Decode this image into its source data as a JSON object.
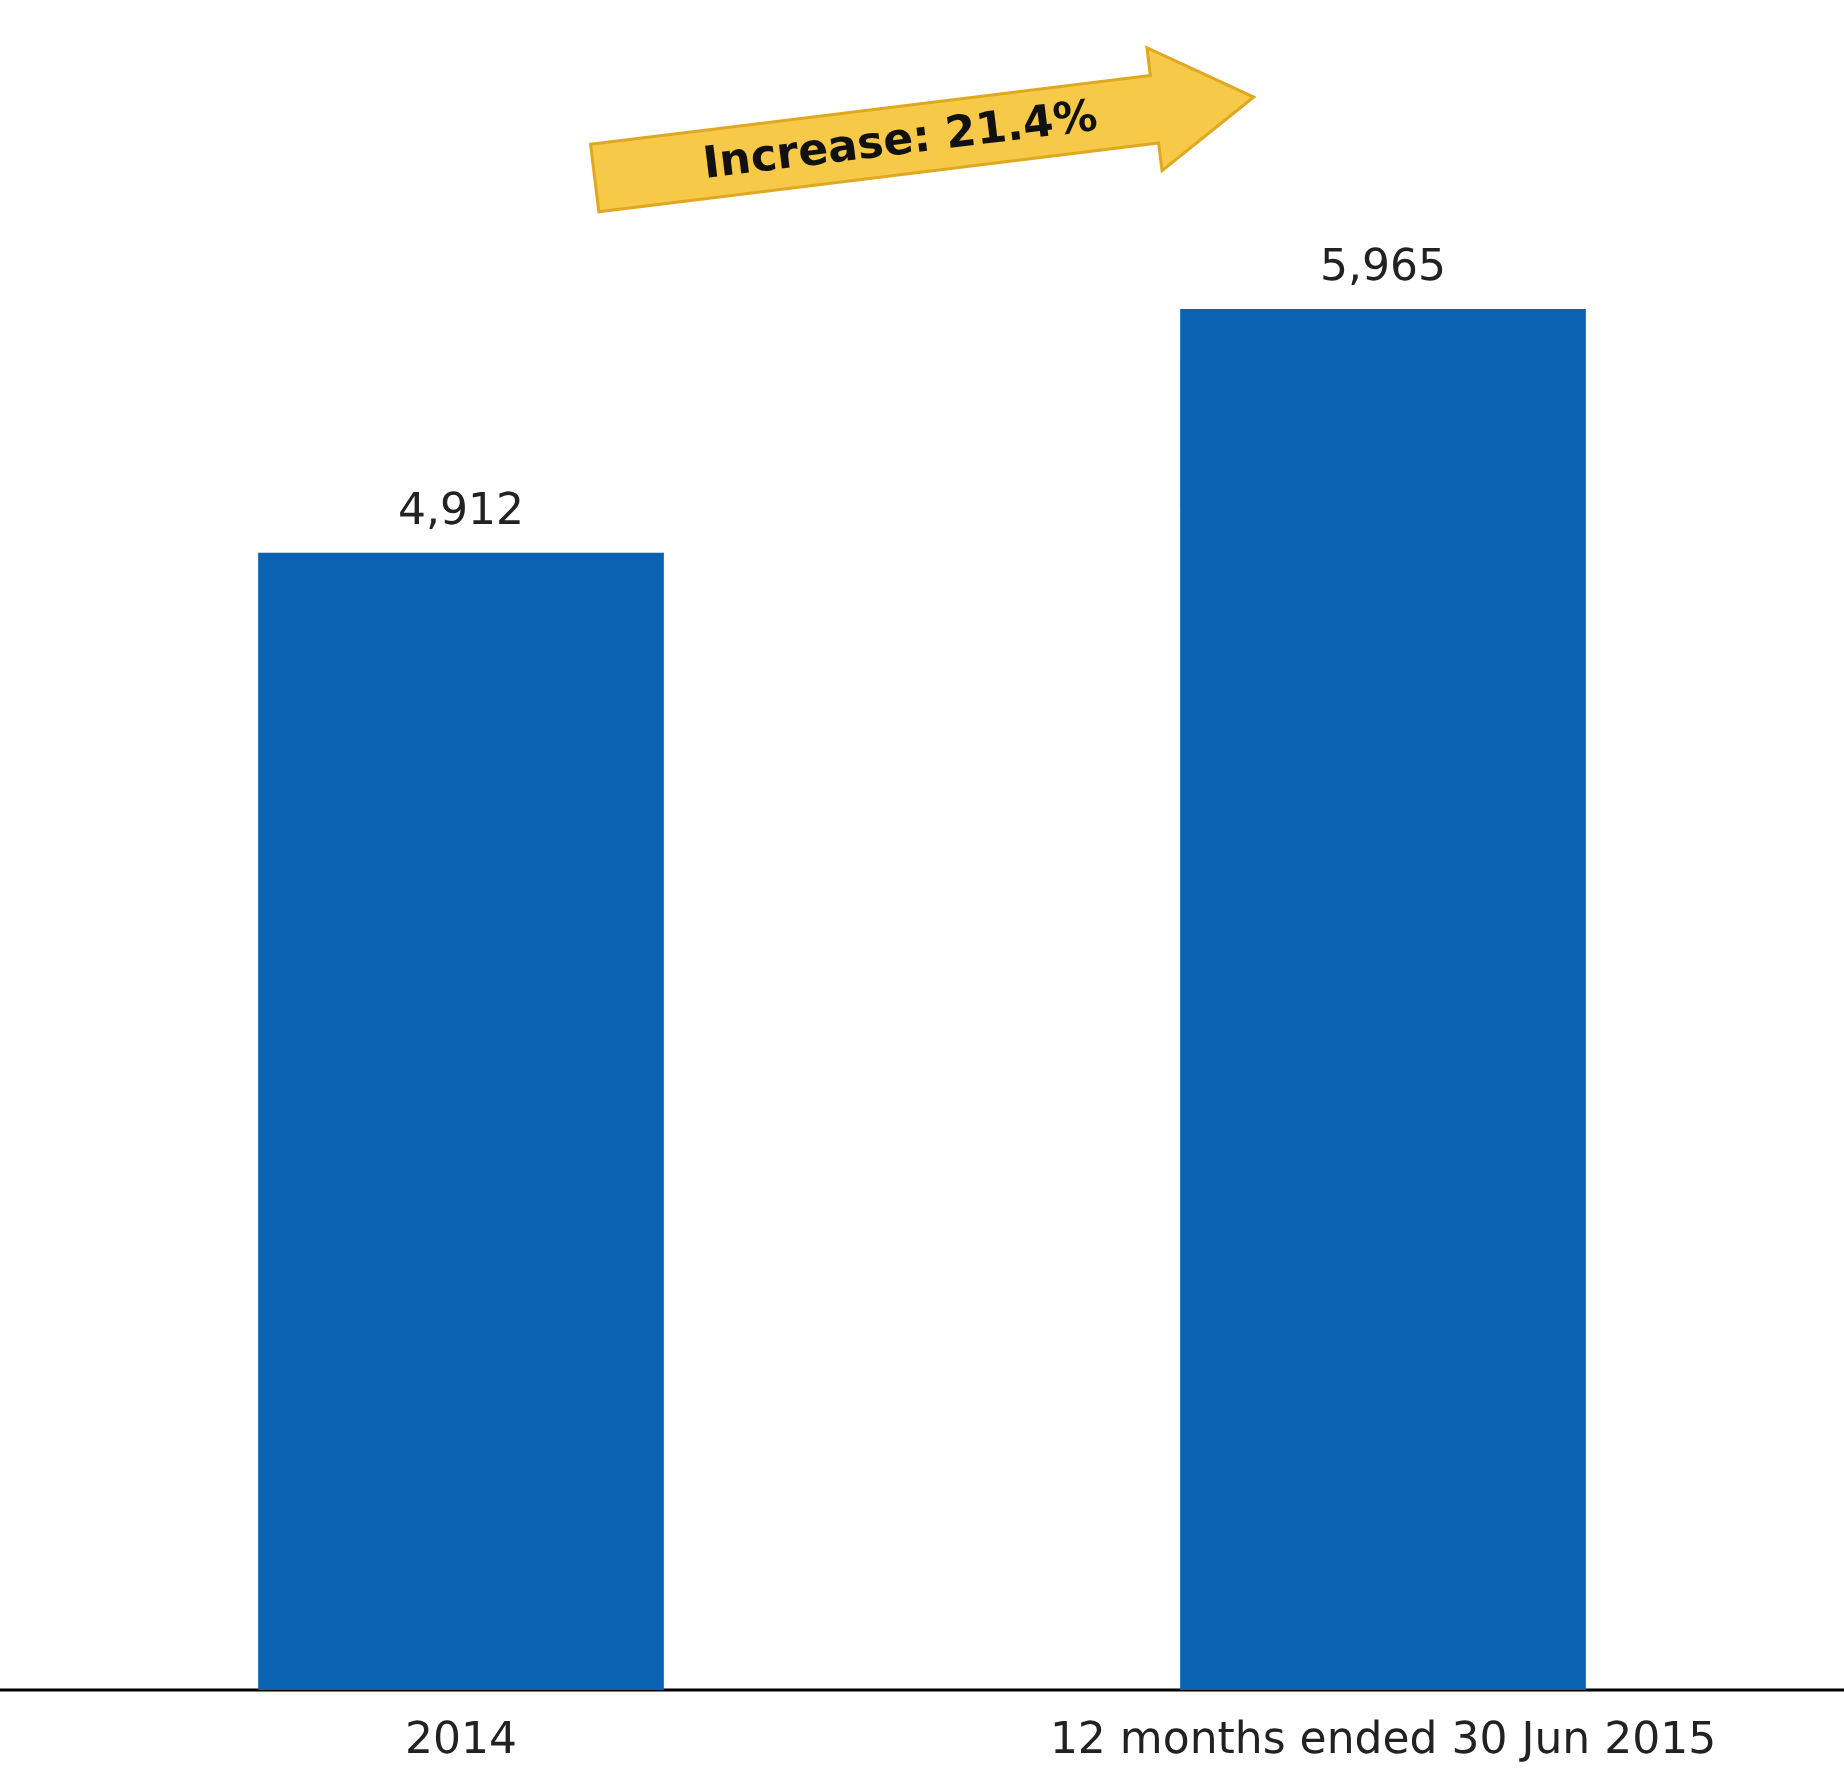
{
  "chart_data": {
    "type": "bar",
    "categories": [
      "2014",
      "12 months ended 30 Jun 2015"
    ],
    "values": [
      4912,
      5965
    ],
    "color": "#0a62b3",
    "value_labels": [
      "4,912",
      "5,965"
    ],
    "annotations": [
      "Increase: 21.4%"
    ]
  }
}
